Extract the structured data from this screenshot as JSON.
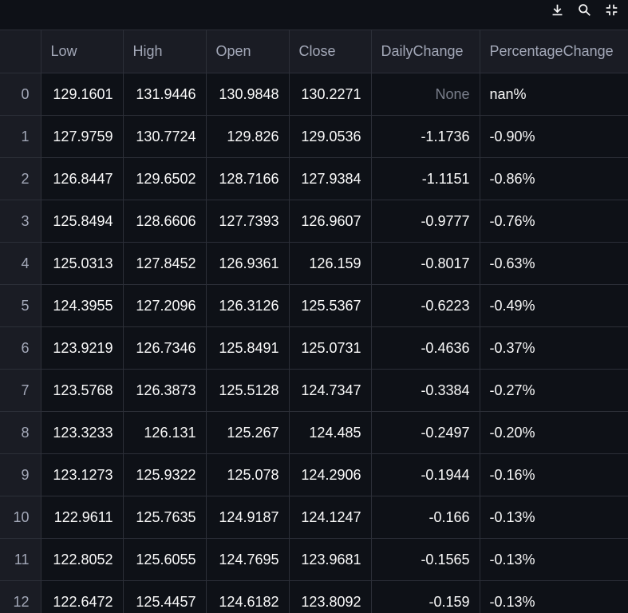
{
  "toolbar": {
    "download_icon": "download-icon",
    "search_icon": "search-icon",
    "fullscreen_icon": "exit-fullscreen-icon"
  },
  "table": {
    "columns": [
      "",
      "Low",
      "High",
      "Open",
      "Close",
      "DailyChange",
      "PercentageChange"
    ],
    "rows": [
      [
        "0",
        "129.1601",
        "131.9446",
        "130.9848",
        "130.2271",
        "None",
        "nan%"
      ],
      [
        "1",
        "127.9759",
        "130.7724",
        "129.826",
        "129.0536",
        "-1.1736",
        "-0.90%"
      ],
      [
        "2",
        "126.8447",
        "129.6502",
        "128.7166",
        "127.9384",
        "-1.1151",
        "-0.86%"
      ],
      [
        "3",
        "125.8494",
        "128.6606",
        "127.7393",
        "126.9607",
        "-0.9777",
        "-0.76%"
      ],
      [
        "4",
        "125.0313",
        "127.8452",
        "126.9361",
        "126.159",
        "-0.8017",
        "-0.63%"
      ],
      [
        "5",
        "124.3955",
        "127.2096",
        "126.3126",
        "125.5367",
        "-0.6223",
        "-0.49%"
      ],
      [
        "6",
        "123.9219",
        "126.7346",
        "125.8491",
        "125.0731",
        "-0.4636",
        "-0.37%"
      ],
      [
        "7",
        "123.5768",
        "126.3873",
        "125.5128",
        "124.7347",
        "-0.3384",
        "-0.27%"
      ],
      [
        "8",
        "123.3233",
        "126.131",
        "125.267",
        "124.485",
        "-0.2497",
        "-0.20%"
      ],
      [
        "9",
        "123.1273",
        "125.9322",
        "125.078",
        "124.2906",
        "-0.1944",
        "-0.16%"
      ],
      [
        "10",
        "122.9611",
        "125.7635",
        "124.9187",
        "124.1247",
        "-0.166",
        "-0.13%"
      ],
      [
        "11",
        "122.8052",
        "125.6055",
        "124.7695",
        "123.9681",
        "-0.1565",
        "-0.13%"
      ],
      [
        "12",
        "122.6472",
        "125.4457",
        "124.6182",
        "123.8092",
        "-0.159",
        "-0.13%"
      ]
    ]
  }
}
